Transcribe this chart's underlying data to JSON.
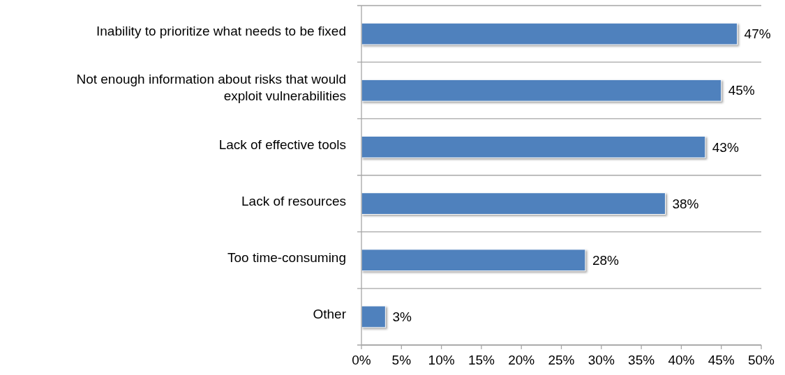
{
  "chart_data": {
    "type": "bar",
    "orientation": "horizontal",
    "categories": [
      "Inability to prioritize what needs to be fixed",
      "Not enough information about risks that would exploit vulnerabilities",
      "Lack of effective tools",
      "Lack of resources",
      "Too time-consuming",
      "Other"
    ],
    "values": [
      47,
      45,
      43,
      38,
      28,
      3
    ],
    "color": "#4f81bd",
    "value_labels": [
      "47%",
      "45%",
      "43%",
      "38%",
      "28%",
      "3%"
    ],
    "xlim": [
      0,
      50
    ],
    "xticks": [
      {
        "value": 0,
        "label": "0%"
      },
      {
        "value": 5,
        "label": "5%"
      },
      {
        "value": 10,
        "label": "10%"
      },
      {
        "value": 15,
        "label": "15%"
      },
      {
        "value": 20,
        "label": "20%"
      },
      {
        "value": 25,
        "label": "25%"
      },
      {
        "value": 30,
        "label": "30%"
      },
      {
        "value": 35,
        "label": "35%"
      },
      {
        "value": 40,
        "label": "40%"
      },
      {
        "value": 45,
        "label": "45%"
      },
      {
        "value": 50,
        "label": "50%"
      }
    ],
    "grid": "y"
  }
}
